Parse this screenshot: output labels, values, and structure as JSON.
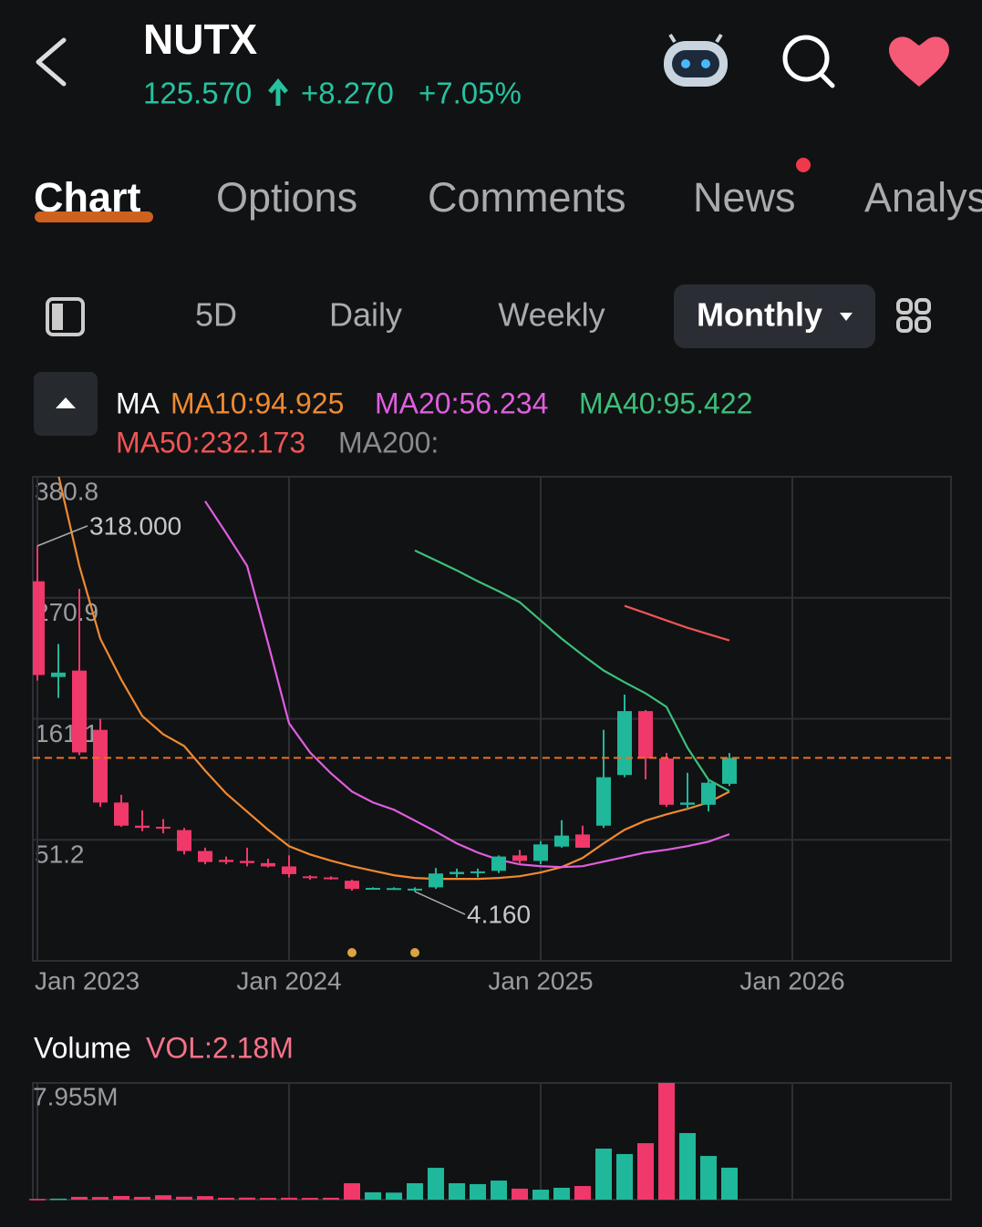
{
  "header": {
    "ticker": "NUTX",
    "price": "125.570",
    "change": "+8.270",
    "change_pct": "+7.05%"
  },
  "tabs": [
    "Chart",
    "Options",
    "Comments",
    "News",
    "Analysis"
  ],
  "periods": [
    "5D",
    "Daily",
    "Weekly",
    "Monthly"
  ],
  "chart_data": [
    {
      "type": "candlestick",
      "indicator": "MA",
      "categories": [
        "Jan 2023",
        null,
        null,
        null,
        null,
        null,
        null,
        null,
        null,
        null,
        null,
        null,
        "Jan 2024",
        null,
        null,
        null,
        null,
        null,
        null,
        null,
        null,
        null,
        null,
        null,
        "Jan 2025",
        null,
        null,
        null,
        null,
        null,
        null,
        null,
        null,
        null,
        null,
        null,
        "Jan 2026"
      ],
      "open": [
        285.9,
        199,
        204.8,
        151,
        85,
        64,
        63,
        60,
        41,
        33,
        32,
        30,
        27,
        18,
        17,
        14,
        7.0,
        7.0,
        6.0,
        8,
        20,
        21,
        23,
        37,
        32,
        45,
        56,
        64,
        110,
        168,
        125,
        83,
        83,
        102,
        null,
        null,
        null
      ],
      "high": [
        318.0,
        229,
        279,
        161,
        92,
        78,
        70,
        62,
        44,
        36,
        44,
        34,
        37,
        19,
        18,
        15,
        8,
        8,
        8,
        25.6,
        25,
        25,
        37,
        42,
        50,
        69,
        64,
        151,
        183,
        169,
        130,
        112,
        106,
        130,
        null,
        null,
        null
      ],
      "low": [
        195.8,
        180,
        128,
        81,
        63,
        59,
        57,
        38,
        29,
        29,
        27,
        26,
        17,
        15,
        15,
        5,
        6,
        6,
        4.16,
        6.6,
        17,
        17,
        21,
        29,
        29,
        44,
        44,
        62,
        108,
        106,
        81,
        79,
        77,
        100,
        null,
        null,
        null
      ],
      "close": [
        200.8,
        203,
        130.5,
        85,
        64,
        62,
        62,
        41,
        31,
        31,
        30,
        27,
        20,
        16.5,
        16,
        6.6,
        7.5,
        7.3,
        6.8,
        20.6,
        22,
        22.5,
        36,
        32,
        47,
        55,
        44,
        108,
        168,
        125,
        83,
        85,
        103,
        125.57,
        null,
        null,
        null
      ],
      "up_color": "#1fb89a",
      "down_color": "#f0386b",
      "series": [
        {
          "name": "MA10:94.925",
          "color": "#f08a30",
          "values": [
            null,
            382.5,
            299.9,
            233.8,
            196.6,
            163.6,
            147.0,
            136.3,
            114.0,
            93.3,
            76.8,
            60.3,
            45.4,
            37.9,
            32.2,
            27.2,
            23.1,
            19.0,
            16.5,
            15.7,
            15.7,
            15.7,
            16.5,
            18.1,
            21.5,
            26.4,
            34.7,
            47.9,
            60.3,
            68.6,
            74.3,
            79.3,
            85.1,
            94.925,
            null,
            null,
            null
          ]
        },
        {
          "name": "MA20:56.234",
          "color": "#e05ee0",
          "values": [
            null,
            null,
            null,
            null,
            null,
            null,
            null,
            null,
            358.6,
            329.7,
            299.9,
            229.7,
            157.0,
            130.5,
            111.5,
            95.0,
            85.1,
            78.5,
            68.6,
            58.6,
            47.9,
            39.6,
            33.0,
            28.9,
            27.2,
            26.4,
            27.2,
            31.4,
            35.5,
            39.6,
            42.1,
            45.4,
            49.5,
            56.234,
            null,
            null,
            null
          ]
        },
        {
          "name": "MA40:95.422",
          "color": "#3cc07a",
          "values": [
            null,
            null,
            null,
            null,
            null,
            null,
            null,
            null,
            null,
            null,
            null,
            null,
            null,
            null,
            null,
            null,
            null,
            null,
            313.9,
            304.9,
            295.8,
            285.9,
            276.8,
            266.9,
            250.3,
            233.8,
            218.9,
            204.9,
            194.2,
            184.2,
            171.8,
            134.7,
            105.7,
            95.422,
            null,
            null,
            null
          ]
        },
        {
          "name": "MA50:232.173",
          "color": "#f05555",
          "values": [
            null,
            null,
            null,
            null,
            null,
            null,
            null,
            null,
            null,
            null,
            null,
            null,
            null,
            null,
            null,
            null,
            null,
            null,
            null,
            null,
            null,
            null,
            null,
            null,
            null,
            null,
            null,
            null,
            263.6,
            257.0,
            250.3,
            243.7,
            237.9,
            232.173,
            null,
            null,
            null
          ]
        },
        {
          "name": "MA200:",
          "color": "#8a8a8a",
          "values": [
            null,
            null,
            null,
            null,
            null,
            null,
            null,
            null,
            null,
            null,
            null,
            null,
            null,
            null,
            null,
            null,
            null,
            null,
            null,
            null,
            null,
            null,
            null,
            null,
            null,
            null,
            null,
            null,
            null,
            null,
            null,
            null,
            null,
            null,
            null,
            null,
            null
          ]
        }
      ],
      "current_price": 125.57,
      "current_price_color": "#f07020",
      "annotations": [
        {
          "value": 318.0,
          "label": "318.000"
        },
        {
          "value": 4.16,
          "label": "4.160"
        }
      ],
      "ylim": [
        -58.7,
        380.8
      ],
      "yticks": [
        380.8,
        270.9,
        161.1,
        51.2
      ],
      "grid": true
    },
    {
      "type": "bar",
      "title": "Volume",
      "subtitle": "VOL:2.18M",
      "categories": [
        "Jan 2023",
        null,
        null,
        null,
        null,
        null,
        null,
        null,
        null,
        null,
        null,
        null,
        "Jan 2024",
        null,
        null,
        null,
        null,
        null,
        null,
        null,
        null,
        null,
        null,
        null,
        "Jan 2025",
        null,
        null,
        null,
        null,
        null,
        null,
        null,
        null,
        null,
        null,
        null,
        "Jan 2026"
      ],
      "values": [
        50000,
        70000,
        190000,
        180000,
        250000,
        190000,
        300000,
        200000,
        240000,
        130000,
        140000,
        120000,
        130000,
        120000,
        130000,
        1120000,
        500000,
        480000,
        1120000,
        2170000,
        1120000,
        1060000,
        1300000,
        750000,
        680000,
        810000,
        930000,
        3480000,
        3110000,
        3850000,
        7955000,
        4540000,
        2980000,
        2180000,
        null,
        null,
        null
      ],
      "ylim": [
        0,
        7955000
      ],
      "yticks": [
        {
          "value": 7955000,
          "label": "7.955M"
        }
      ],
      "grid": true
    }
  ]
}
